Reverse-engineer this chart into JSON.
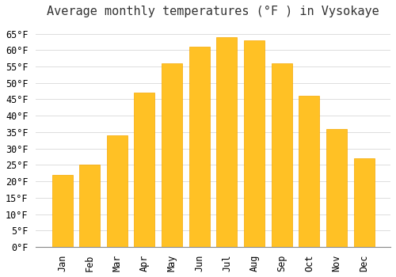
{
  "title": "Average monthly temperatures (°F ) in Vysokaye",
  "months": [
    "Jan",
    "Feb",
    "Mar",
    "Apr",
    "May",
    "Jun",
    "Jul",
    "Aug",
    "Sep",
    "Oct",
    "Nov",
    "Dec"
  ],
  "values": [
    22,
    25,
    34,
    47,
    56,
    61,
    64,
    63,
    56,
    46,
    36,
    27
  ],
  "bar_color": "#FFC125",
  "bar_edge_color": "#F5A800",
  "background_color": "#FFFFFF",
  "grid_color": "#DDDDDD",
  "ylim": [
    0,
    68
  ],
  "yticks": [
    0,
    5,
    10,
    15,
    20,
    25,
    30,
    35,
    40,
    45,
    50,
    55,
    60,
    65
  ],
  "title_fontsize": 11,
  "tick_fontsize": 8.5,
  "font_family": "monospace",
  "bar_width": 0.75
}
